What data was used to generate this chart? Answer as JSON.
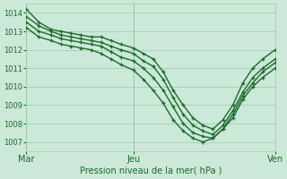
{
  "title": "Pression niveau de la mer( hPa )",
  "x_ticks": [
    "Mar",
    "Jeu",
    "Ven"
  ],
  "x_tick_positions": [
    0,
    0.43,
    1.0
  ],
  "ylim": [
    1006.5,
    1014.5
  ],
  "yticks": [
    1007,
    1008,
    1009,
    1010,
    1011,
    1012,
    1013,
    1014
  ],
  "background_color": "#cce8d8",
  "grid_color": "#99ccaa",
  "line_color": "#1a6b2a",
  "line_width": 1.0,
  "marker": "+",
  "marker_size": 3.5,
  "series": [
    {
      "x": [
        0,
        0.05,
        0.1,
        0.14,
        0.18,
        0.22,
        0.26,
        0.3,
        0.34,
        0.38,
        0.43,
        0.47,
        0.51,
        0.55,
        0.59,
        0.63,
        0.67,
        0.71,
        0.75,
        0.79,
        0.83,
        0.87,
        0.91,
        0.95,
        1.0
      ],
      "y": [
        1014.2,
        1013.5,
        1013.1,
        1013.0,
        1012.9,
        1012.8,
        1012.7,
        1012.7,
        1012.5,
        1012.3,
        1012.1,
        1011.8,
        1011.5,
        1010.8,
        1009.8,
        1009.0,
        1008.3,
        1007.9,
        1007.7,
        1008.2,
        1009.0,
        1010.2,
        1011.0,
        1011.5,
        1012.0
      ]
    },
    {
      "x": [
        0,
        0.05,
        0.1,
        0.14,
        0.18,
        0.22,
        0.26,
        0.3,
        0.34,
        0.38,
        0.43,
        0.47,
        0.51,
        0.55,
        0.59,
        0.63,
        0.67,
        0.71,
        0.75,
        0.79,
        0.83,
        0.87,
        0.91,
        0.95,
        1.0
      ],
      "y": [
        1013.8,
        1013.3,
        1013.0,
        1012.8,
        1012.7,
        1012.6,
        1012.5,
        1012.4,
        1012.2,
        1012.0,
        1011.8,
        1011.4,
        1011.1,
        1010.4,
        1009.4,
        1008.5,
        1007.9,
        1007.6,
        1007.4,
        1007.9,
        1008.7,
        1009.7,
        1010.5,
        1011.0,
        1011.5
      ]
    },
    {
      "x": [
        0,
        0.05,
        0.1,
        0.14,
        0.18,
        0.22,
        0.26,
        0.3,
        0.34,
        0.38,
        0.43,
        0.47,
        0.51,
        0.55,
        0.59,
        0.63,
        0.67,
        0.71,
        0.75,
        0.79,
        0.83,
        0.87,
        0.91,
        0.95,
        1.0
      ],
      "y": [
        1013.5,
        1013.0,
        1012.8,
        1012.6,
        1012.5,
        1012.4,
        1012.3,
        1012.2,
        1011.9,
        1011.6,
        1011.4,
        1011.0,
        1010.5,
        1009.8,
        1008.9,
        1008.0,
        1007.5,
        1007.3,
        1007.2,
        1007.7,
        1008.5,
        1009.5,
        1010.2,
        1010.8,
        1011.3
      ]
    },
    {
      "x": [
        0,
        0.05,
        0.1,
        0.14,
        0.18,
        0.22,
        0.26,
        0.3,
        0.34,
        0.38,
        0.43,
        0.47,
        0.51,
        0.55,
        0.59,
        0.63,
        0.67,
        0.71,
        0.75,
        0.79,
        0.83,
        0.87,
        0.91,
        0.95,
        1.0
      ],
      "y": [
        1013.2,
        1012.7,
        1012.5,
        1012.3,
        1012.2,
        1012.1,
        1012.0,
        1011.8,
        1011.5,
        1011.2,
        1010.9,
        1010.4,
        1009.8,
        1009.1,
        1008.2,
        1007.6,
        1007.2,
        1007.0,
        1007.2,
        1007.7,
        1008.3,
        1009.3,
        1010.0,
        1010.5,
        1011.0
      ]
    }
  ]
}
